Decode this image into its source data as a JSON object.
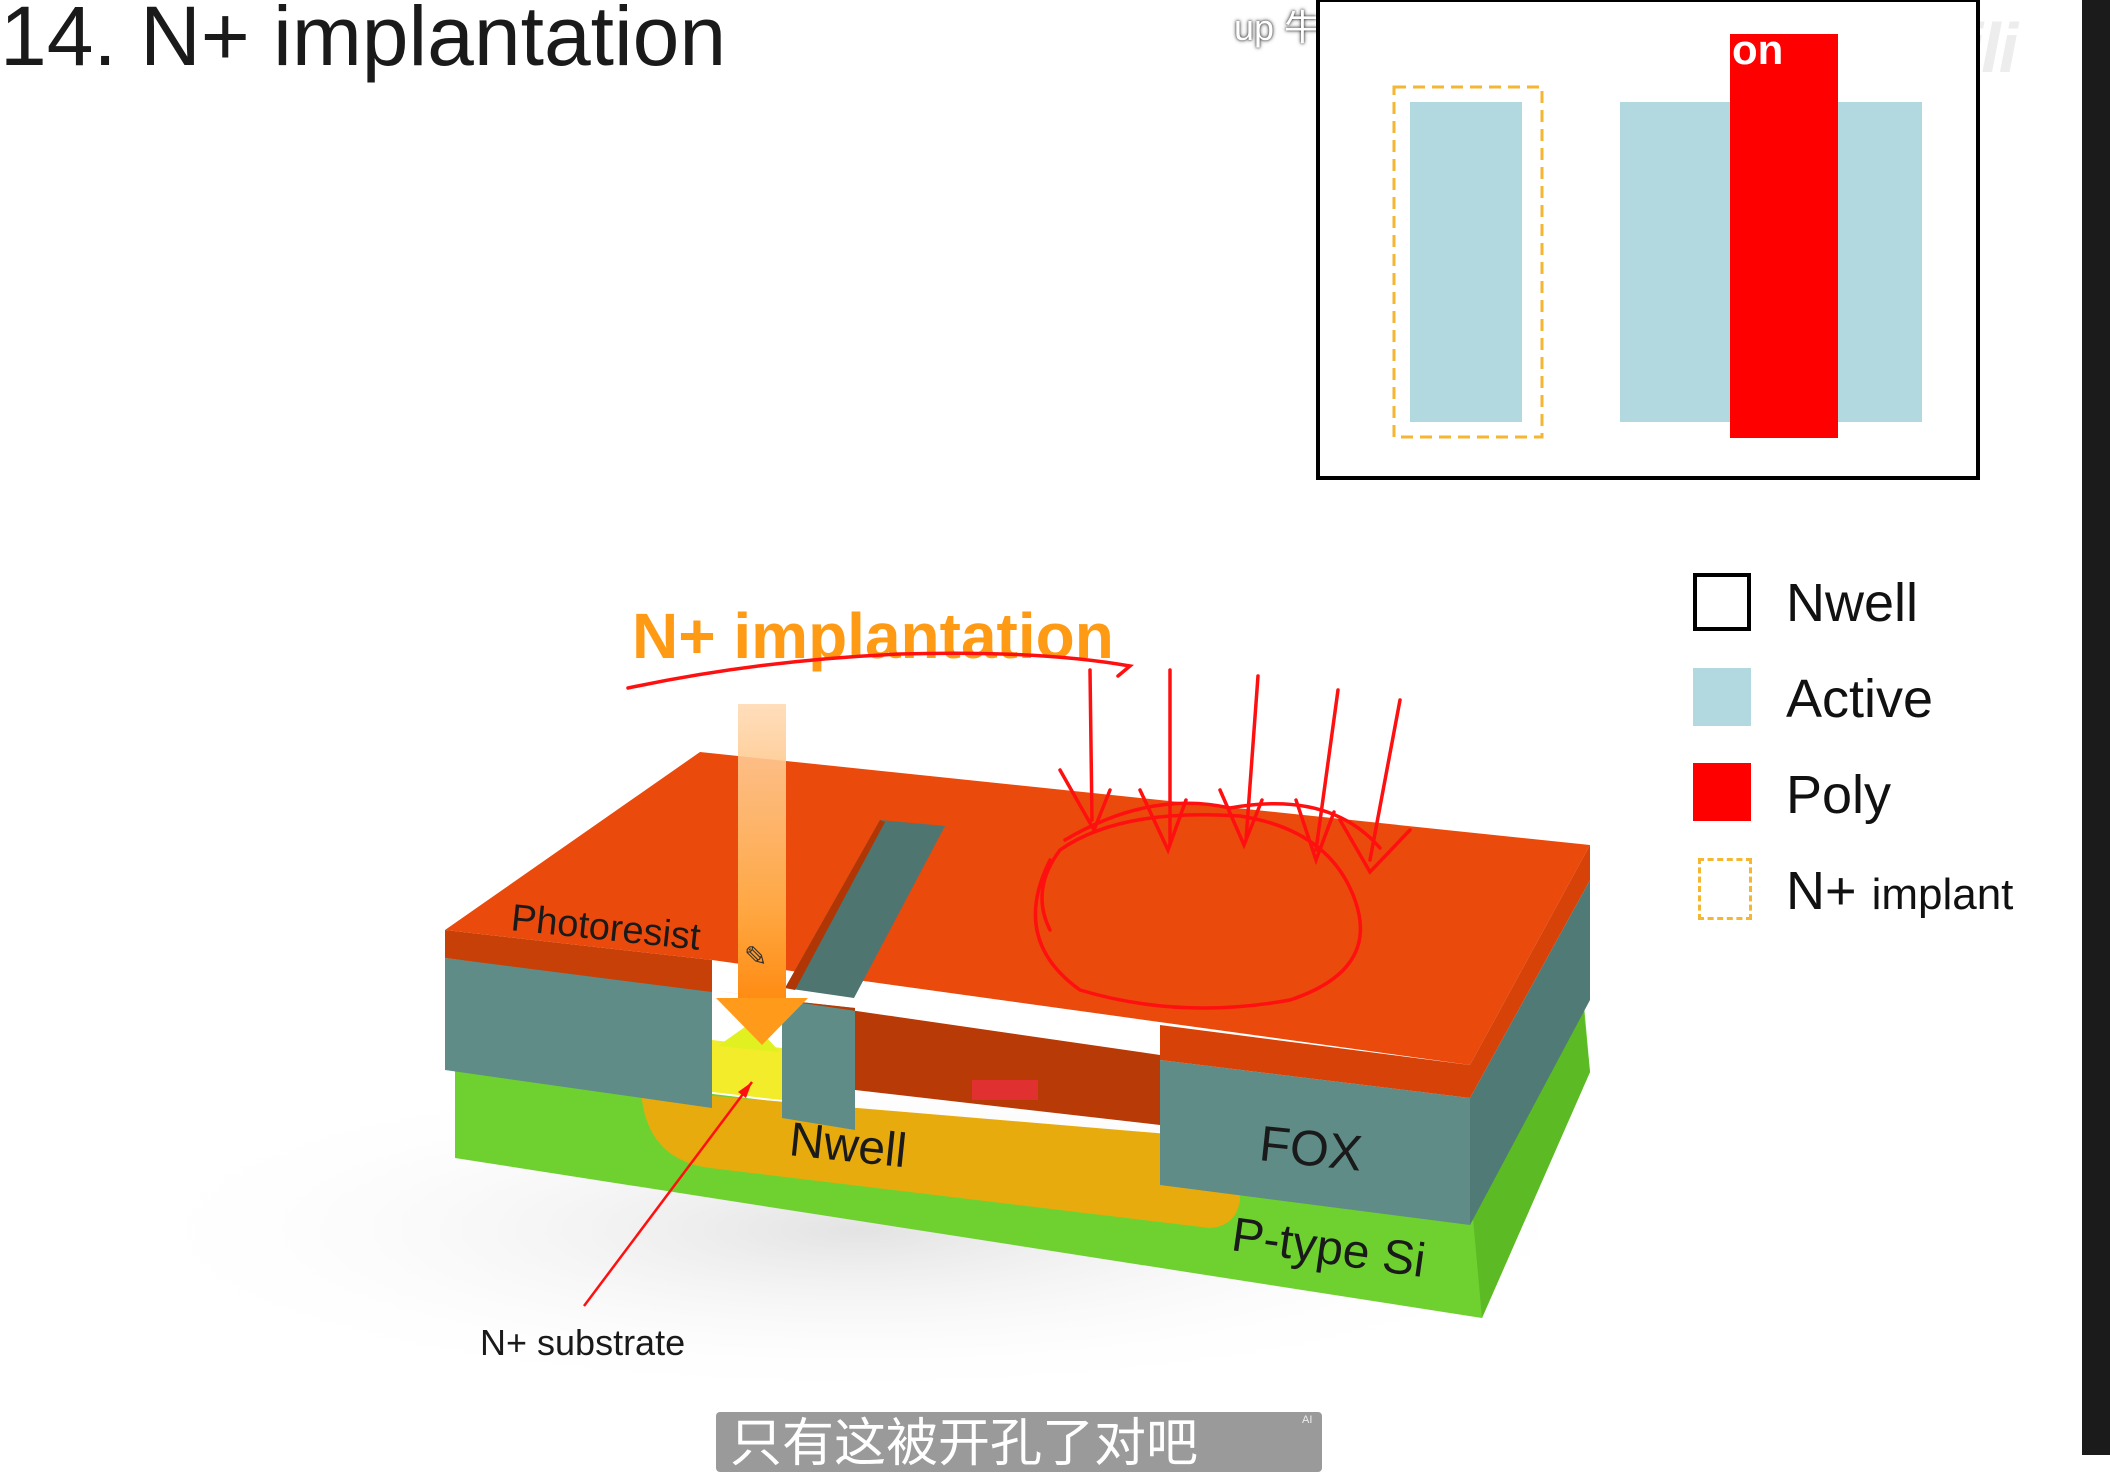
{
  "slide": {
    "title": "14. N+ implantation",
    "overlay_top_text": "up 牛",
    "watermark": "bilibili",
    "corner_label": "on"
  },
  "diagram": {
    "beam_label": "N+ implantation",
    "layers": {
      "photoresist": "Photoresist",
      "nwell": "Nwell",
      "fox": "FOX",
      "substrate": "P-type Si"
    },
    "callout": "N+ substrate"
  },
  "legend": {
    "items": [
      {
        "label": "Nwell",
        "swatch": "outline",
        "color": "#000000"
      },
      {
        "label": "Active",
        "swatch": "fill",
        "color": "#b2d8e0"
      },
      {
        "label": "Poly",
        "swatch": "fill",
        "color": "#ff0000"
      },
      {
        "label": "N+",
        "sub": "implant",
        "swatch": "dashed",
        "color": "#f5b632"
      }
    ]
  },
  "colors": {
    "photoresist": "#e8470a",
    "fox": "#5f8c87",
    "nwell": "#e8ab0e",
    "substrate": "#6fd12f",
    "active": "#b2d8e0",
    "poly": "#ff0000",
    "implant": "#f5b632",
    "beam": "#ff9a1a",
    "annotation": "#ff1010"
  },
  "subtitle": {
    "text": "只有这被开孔了对吧",
    "badge": "AI"
  }
}
